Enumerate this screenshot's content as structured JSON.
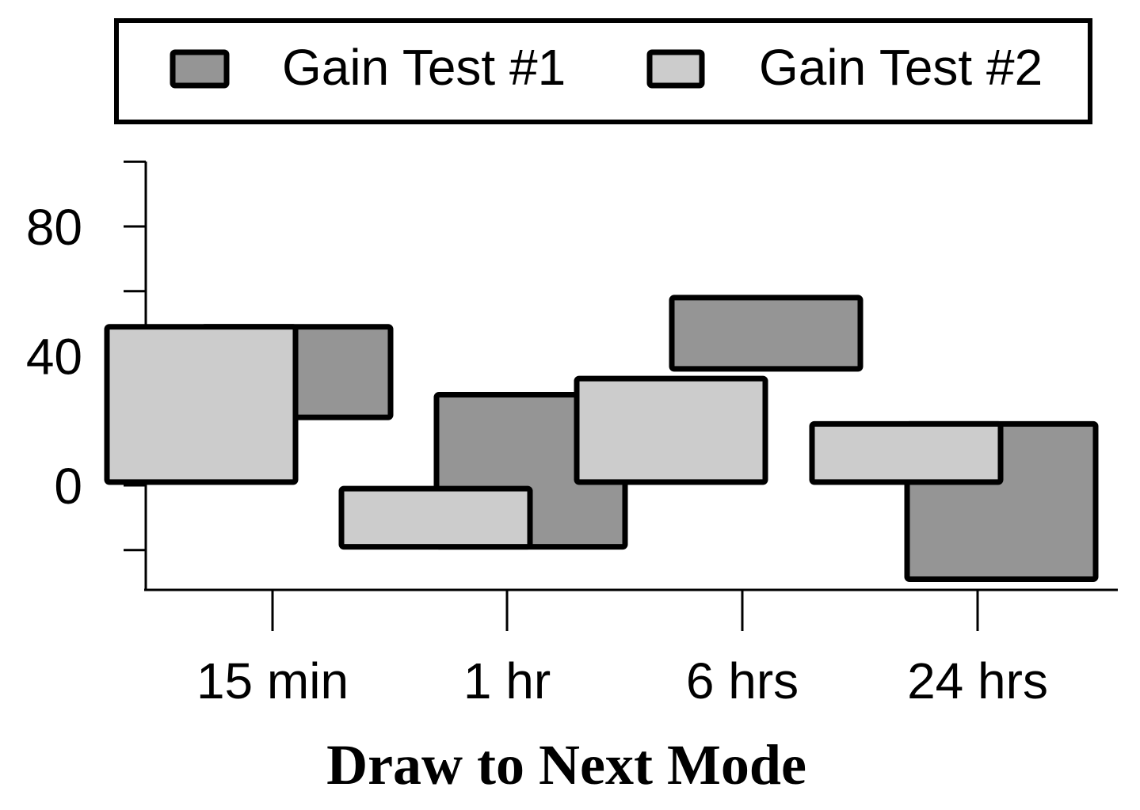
{
  "chart_data": {
    "type": "bar",
    "title": "",
    "xlabel": "Draw to Next Mode",
    "ylabel": "",
    "categories": [
      "15 min",
      "1 hr",
      "6 hrs",
      "24 hrs"
    ],
    "series": [
      {
        "name": "Gain Test #1",
        "values": [
          [
            21,
            49
          ],
          [
            -19,
            28
          ],
          [
            36,
            58
          ],
          [
            -29,
            19
          ]
        ],
        "color": "#959595"
      },
      {
        "name": "Gain Test #2",
        "values": [
          [
            1,
            49
          ],
          [
            -19,
            -1
          ],
          [
            1,
            33
          ],
          [
            1,
            19
          ]
        ],
        "color": "#cccccc"
      }
    ],
    "ylim": [
      -32,
      100
    ],
    "yticks_labeled": [
      0,
      40,
      80
    ],
    "yticks_minor": [
      -20,
      20,
      60,
      100
    ],
    "grid": false,
    "legend": "top"
  }
}
